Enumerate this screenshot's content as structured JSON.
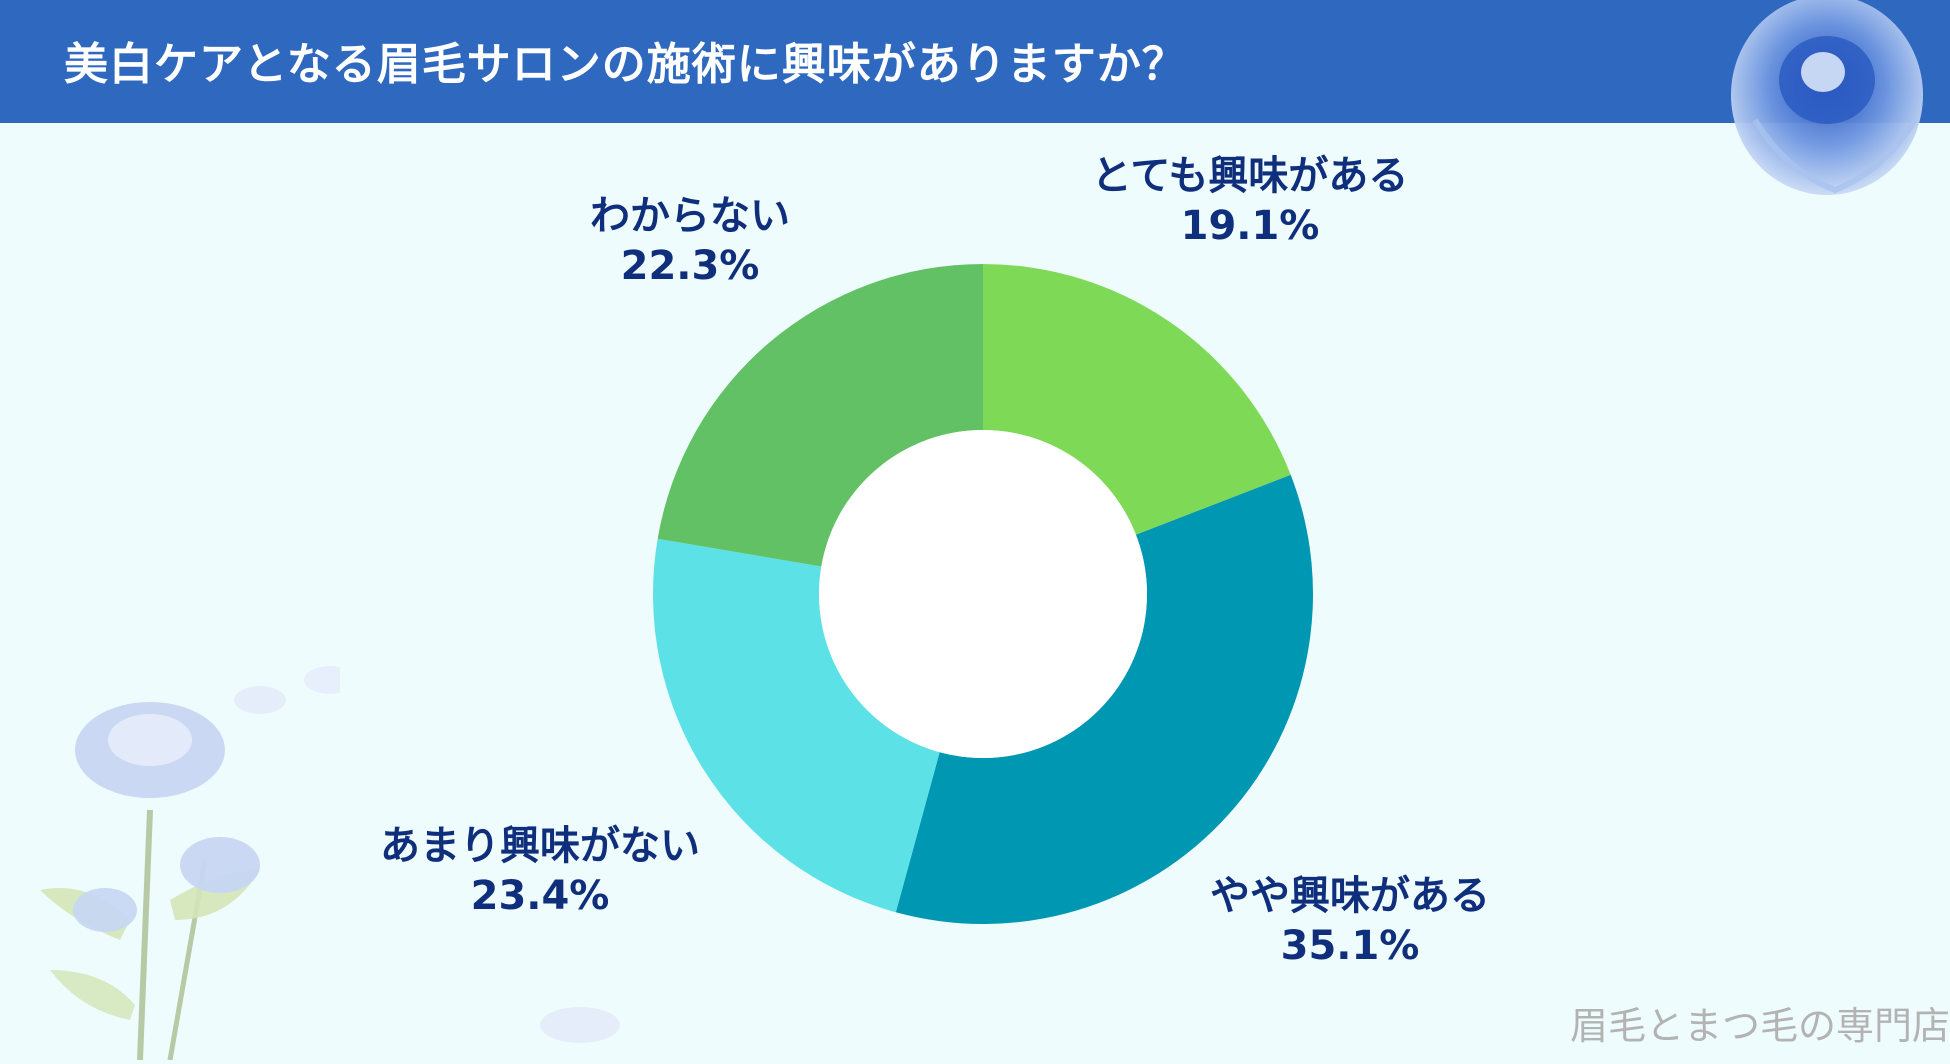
{
  "header": {
    "title": "美白ケアとなる眉毛サロンの施術に興味がありますか？"
  },
  "chart_data": {
    "type": "pie",
    "title": "美白ケアとなる眉毛サロンの施術に興味がありますか？",
    "donut": true,
    "categories": [
      "とても興味がある",
      "やや興味がある",
      "あまり興味がない",
      "わからない"
    ],
    "values": [
      19.1,
      35.1,
      23.4,
      22.3
    ],
    "value_labels": [
      "19.1%",
      "35.1%",
      "23.4%",
      "22.3%"
    ],
    "colors": [
      "#7ed957",
      "#0097b2",
      "#5ce1e6",
      "#63c165"
    ],
    "start": "12 o'clock",
    "direction": "clockwise"
  },
  "footer": {
    "credit": "眉毛とまつ毛の専門店"
  },
  "colors": {
    "header_bg": "#2f69bf",
    "page_bg": "#effcfd",
    "label_text": "#0f2e7c"
  }
}
